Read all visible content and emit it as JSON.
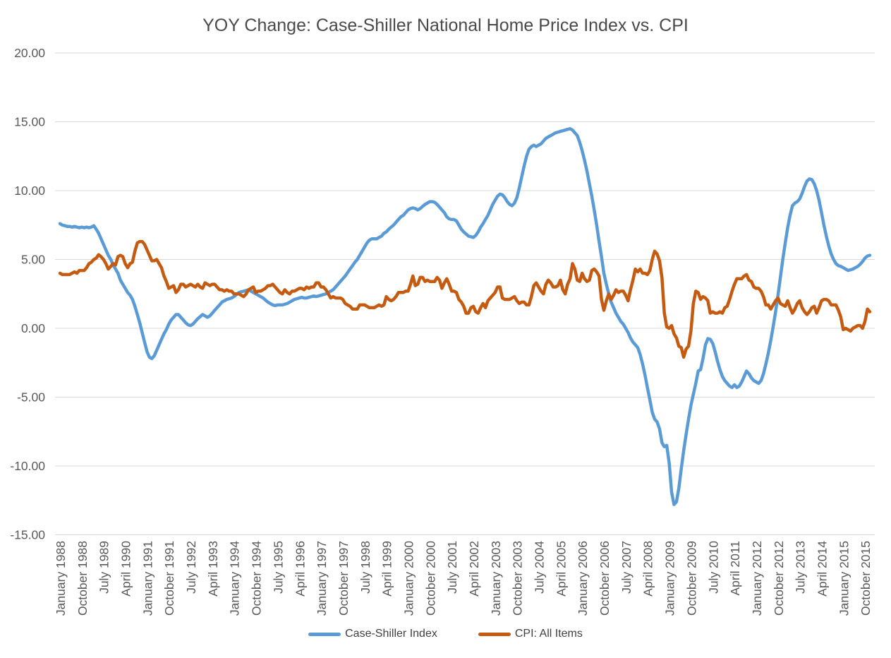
{
  "title": "YOY Change: Case-Shiller National Home Price Index vs. CPI",
  "colors": {
    "case_shiller_line": "#5B9BD5",
    "cpi_line": "#C55A11",
    "gridline": "#D9D9D9",
    "axis_text": "#595959",
    "title_text": "#4a4a4a",
    "background": "#FFFFFF"
  },
  "y_axis": {
    "tick_labels": [
      "20.00",
      "15.00",
      "10.00",
      "5.00",
      "0.00",
      "-5.00",
      "-10.00",
      "-15.00"
    ],
    "tick_values": [
      20,
      15,
      10,
      5,
      0,
      -5,
      -10,
      -15
    ]
  },
  "x_axis": {
    "tick_labels": [
      "January 1988",
      "October 1988",
      "July 1989",
      "April 1990",
      "January 1991",
      "October 1991",
      "July 1992",
      "April 1993",
      "January 1994",
      "October 1994",
      "July 1995",
      "April 1996",
      "January 1997",
      "October 1997",
      "July 1998",
      "April 1999",
      "January 2000",
      "October 2000",
      "July 2001",
      "April 2002",
      "January 2003",
      "October 2003",
      "July 2004",
      "April 2005",
      "January 2006",
      "October 2006",
      "July 2007",
      "April 2008",
      "January 2009",
      "October 2009",
      "July 2010",
      "April 2011",
      "January 2012",
      "October 2012",
      "July 2013",
      "April 2014",
      "January 2015",
      "October 2015"
    ]
  },
  "legend": {
    "items": [
      {
        "label": "Case-Shiller Index"
      },
      {
        "label": "CPI: All Items"
      }
    ]
  },
  "chart_data": {
    "type": "line",
    "title": "YOY Change: Case-Shiller National Home Price Index vs. CPI",
    "frequency": "monthly",
    "x_start": "January 1988",
    "x_end": "December 2015",
    "x_tick_interval_months": 9,
    "ylim": [
      -15,
      20
    ],
    "y_tick_step": 5,
    "grid": true,
    "legend_position": "bottom",
    "series": [
      {
        "name": "Case-Shiller Index",
        "color": "#5B9BD5",
        "values": [
          7.6,
          7.5,
          7.45,
          7.4,
          7.4,
          7.35,
          7.4,
          7.35,
          7.3,
          7.35,
          7.3,
          7.35,
          7.3,
          7.35,
          7.45,
          7.2,
          6.9,
          6.5,
          6.1,
          5.7,
          5.3,
          5.0,
          4.6,
          4.3,
          4.0,
          3.5,
          3.2,
          2.9,
          2.6,
          2.4,
          2.1,
          1.6,
          1.0,
          0.4,
          -0.3,
          -1.0,
          -1.7,
          -2.1,
          -2.2,
          -2.0,
          -1.6,
          -1.2,
          -0.8,
          -0.4,
          -0.1,
          0.3,
          0.6,
          0.8,
          1.0,
          1.0,
          0.8,
          0.6,
          0.4,
          0.25,
          0.2,
          0.3,
          0.5,
          0.7,
          0.85,
          1.0,
          0.9,
          0.8,
          0.9,
          1.1,
          1.3,
          1.5,
          1.7,
          1.9,
          2.0,
          2.1,
          2.15,
          2.2,
          2.3,
          2.45,
          2.6,
          2.65,
          2.7,
          2.75,
          2.8,
          2.7,
          2.6,
          2.5,
          2.4,
          2.3,
          2.2,
          2.05,
          1.9,
          1.8,
          1.7,
          1.65,
          1.7,
          1.7,
          1.7,
          1.75,
          1.8,
          1.9,
          2.0,
          2.1,
          2.15,
          2.2,
          2.25,
          2.2,
          2.2,
          2.25,
          2.3,
          2.35,
          2.3,
          2.35,
          2.4,
          2.45,
          2.5,
          2.6,
          2.7,
          2.8,
          3.0,
          3.2,
          3.4,
          3.6,
          3.8,
          4.05,
          4.3,
          4.55,
          4.8,
          5.0,
          5.3,
          5.6,
          5.9,
          6.2,
          6.4,
          6.5,
          6.5,
          6.5,
          6.6,
          6.7,
          6.9,
          7.0,
          7.2,
          7.35,
          7.5,
          7.7,
          7.9,
          8.1,
          8.2,
          8.4,
          8.6,
          8.7,
          8.75,
          8.7,
          8.6,
          8.7,
          8.85,
          9.0,
          9.1,
          9.2,
          9.2,
          9.15,
          9.0,
          8.8,
          8.6,
          8.4,
          8.1,
          7.95,
          7.9,
          7.9,
          7.8,
          7.5,
          7.2,
          7.0,
          6.85,
          6.7,
          6.65,
          6.6,
          6.75,
          7.0,
          7.35,
          7.6,
          7.9,
          8.2,
          8.6,
          9.0,
          9.3,
          9.6,
          9.75,
          9.7,
          9.5,
          9.2,
          9.0,
          8.9,
          9.1,
          9.5,
          10.2,
          11.0,
          11.8,
          12.5,
          13.0,
          13.2,
          13.3,
          13.2,
          13.3,
          13.4,
          13.6,
          13.8,
          13.9,
          14.0,
          14.1,
          14.2,
          14.25,
          14.3,
          14.35,
          14.4,
          14.45,
          14.5,
          14.4,
          14.2,
          14.0,
          13.5,
          12.9,
          12.2,
          11.4,
          10.5,
          9.6,
          8.6,
          7.5,
          6.3,
          5.2,
          4.0,
          3.2,
          2.5,
          1.9,
          1.5,
          1.1,
          0.8,
          0.5,
          0.3,
          0.0,
          -0.3,
          -0.7,
          -1.0,
          -1.2,
          -1.4,
          -1.9,
          -2.6,
          -3.4,
          -4.3,
          -5.2,
          -6.1,
          -6.6,
          -6.8,
          -7.3,
          -8.3,
          -8.6,
          -8.5,
          -9.8,
          -11.9,
          -12.8,
          -12.6,
          -11.6,
          -10.2,
          -8.9,
          -7.7,
          -6.6,
          -5.6,
          -4.8,
          -4.0,
          -3.1,
          -3.0,
          -2.2,
          -1.2,
          -0.75,
          -0.8,
          -1.1,
          -1.7,
          -2.4,
          -3.0,
          -3.5,
          -3.8,
          -4.0,
          -4.2,
          -4.3,
          -4.1,
          -4.3,
          -4.2,
          -3.9,
          -3.5,
          -3.1,
          -3.3,
          -3.6,
          -3.8,
          -3.9,
          -4.0,
          -3.8,
          -3.3,
          -2.6,
          -1.8,
          -0.9,
          0.1,
          1.2,
          2.4,
          3.7,
          5.0,
          6.2,
          7.3,
          8.2,
          8.9,
          9.1,
          9.2,
          9.4,
          9.8,
          10.3,
          10.7,
          10.85,
          10.8,
          10.5,
          10.0,
          9.3,
          8.4,
          7.5,
          6.7,
          6.0,
          5.4,
          5.0,
          4.7,
          4.55,
          4.5,
          4.4,
          4.3,
          4.2,
          4.25,
          4.3,
          4.4,
          4.5,
          4.65,
          4.85,
          5.1,
          5.25,
          5.3
        ]
      },
      {
        "name": "CPI: All Items",
        "color": "#C55A11",
        "values": [
          4.0,
          3.9,
          3.9,
          3.9,
          3.9,
          4.0,
          4.1,
          4.0,
          4.2,
          4.2,
          4.2,
          4.4,
          4.7,
          4.8,
          5.0,
          5.1,
          5.35,
          5.2,
          5.0,
          4.7,
          4.3,
          4.5,
          4.7,
          4.6,
          5.2,
          5.3,
          5.2,
          4.7,
          4.4,
          4.7,
          4.8,
          5.6,
          6.2,
          6.3,
          6.3,
          6.1,
          5.7,
          5.3,
          4.9,
          4.9,
          5.0,
          4.7,
          4.4,
          3.8,
          3.4,
          2.9,
          3.0,
          3.1,
          2.6,
          2.8,
          3.2,
          3.2,
          3.0,
          3.1,
          3.2,
          3.1,
          3.0,
          3.2,
          3.0,
          2.9,
          3.3,
          3.2,
          3.1,
          3.2,
          3.2,
          3.0,
          2.8,
          2.8,
          2.7,
          2.8,
          2.7,
          2.7,
          2.5,
          2.5,
          2.5,
          2.4,
          2.3,
          2.5,
          2.8,
          2.9,
          3.0,
          2.6,
          2.7,
          2.7,
          2.8,
          2.9,
          3.1,
          3.1,
          3.2,
          3.0,
          2.8,
          2.6,
          2.5,
          2.8,
          2.6,
          2.5,
          2.7,
          2.7,
          2.8,
          2.9,
          2.9,
          2.8,
          3.0,
          2.9,
          3.0,
          3.0,
          3.3,
          3.3,
          3.0,
          3.0,
          2.8,
          2.5,
          2.2,
          2.3,
          2.2,
          2.2,
          2.2,
          2.1,
          1.8,
          1.7,
          1.6,
          1.4,
          1.4,
          1.4,
          1.7,
          1.7,
          1.7,
          1.6,
          1.5,
          1.5,
          1.5,
          1.6,
          1.7,
          1.6,
          1.7,
          2.3,
          2.1,
          2.0,
          2.1,
          2.3,
          2.6,
          2.6,
          2.6,
          2.7,
          2.7,
          3.2,
          3.8,
          3.1,
          3.2,
          3.7,
          3.7,
          3.4,
          3.5,
          3.4,
          3.4,
          3.4,
          3.7,
          3.5,
          2.9,
          3.3,
          3.6,
          3.2,
          2.7,
          2.7,
          2.6,
          2.1,
          1.9,
          1.6,
          1.1,
          1.1,
          1.5,
          1.6,
          1.2,
          1.1,
          1.5,
          1.8,
          1.5,
          2.0,
          2.2,
          2.4,
          2.6,
          3.0,
          3.0,
          2.2,
          2.1,
          2.1,
          2.1,
          2.2,
          2.3,
          2.0,
          1.8,
          1.9,
          1.9,
          1.7,
          1.7,
          2.3,
          3.1,
          3.3,
          3.0,
          2.7,
          2.5,
          3.2,
          3.5,
          3.3,
          3.0,
          3.0,
          3.1,
          3.5,
          2.8,
          2.5,
          3.2,
          3.6,
          4.7,
          4.3,
          3.5,
          3.4,
          4.0,
          3.6,
          3.4,
          3.5,
          4.2,
          4.3,
          4.1,
          3.8,
          2.1,
          1.3,
          2.0,
          2.5,
          2.1,
          2.4,
          2.8,
          2.6,
          2.7,
          2.7,
          2.4,
          2.0,
          2.8,
          3.5,
          4.3,
          4.1,
          4.3,
          4.0,
          4.0,
          3.9,
          4.2,
          5.0,
          5.6,
          5.4,
          4.9,
          3.7,
          1.1,
          0.1,
          0.0,
          0.2,
          -0.4,
          -0.7,
          -1.3,
          -1.4,
          -2.1,
          -1.5,
          -1.3,
          -0.2,
          1.8,
          2.7,
          2.6,
          2.1,
          2.3,
          2.2,
          2.0,
          1.1,
          1.2,
          1.1,
          1.1,
          1.2,
          1.1,
          1.5,
          1.6,
          2.1,
          2.7,
          3.2,
          3.6,
          3.6,
          3.6,
          3.8,
          3.9,
          3.5,
          3.4,
          3.0,
          2.9,
          2.9,
          2.7,
          2.3,
          1.7,
          1.7,
          1.4,
          1.7,
          2.0,
          2.2,
          1.8,
          1.7,
          1.6,
          2.0,
          1.5,
          1.1,
          1.4,
          1.8,
          2.0,
          1.5,
          1.2,
          1.0,
          1.2,
          1.5,
          1.6,
          1.1,
          1.5,
          2.0,
          2.1,
          2.1,
          2.0,
          1.7,
          1.7,
          1.7,
          1.3,
          0.8,
          -0.1,
          0.0,
          -0.1,
          -0.2,
          0.0,
          0.1,
          0.2,
          0.2,
          0.0,
          0.5,
          1.4,
          1.2
        ]
      }
    ]
  }
}
